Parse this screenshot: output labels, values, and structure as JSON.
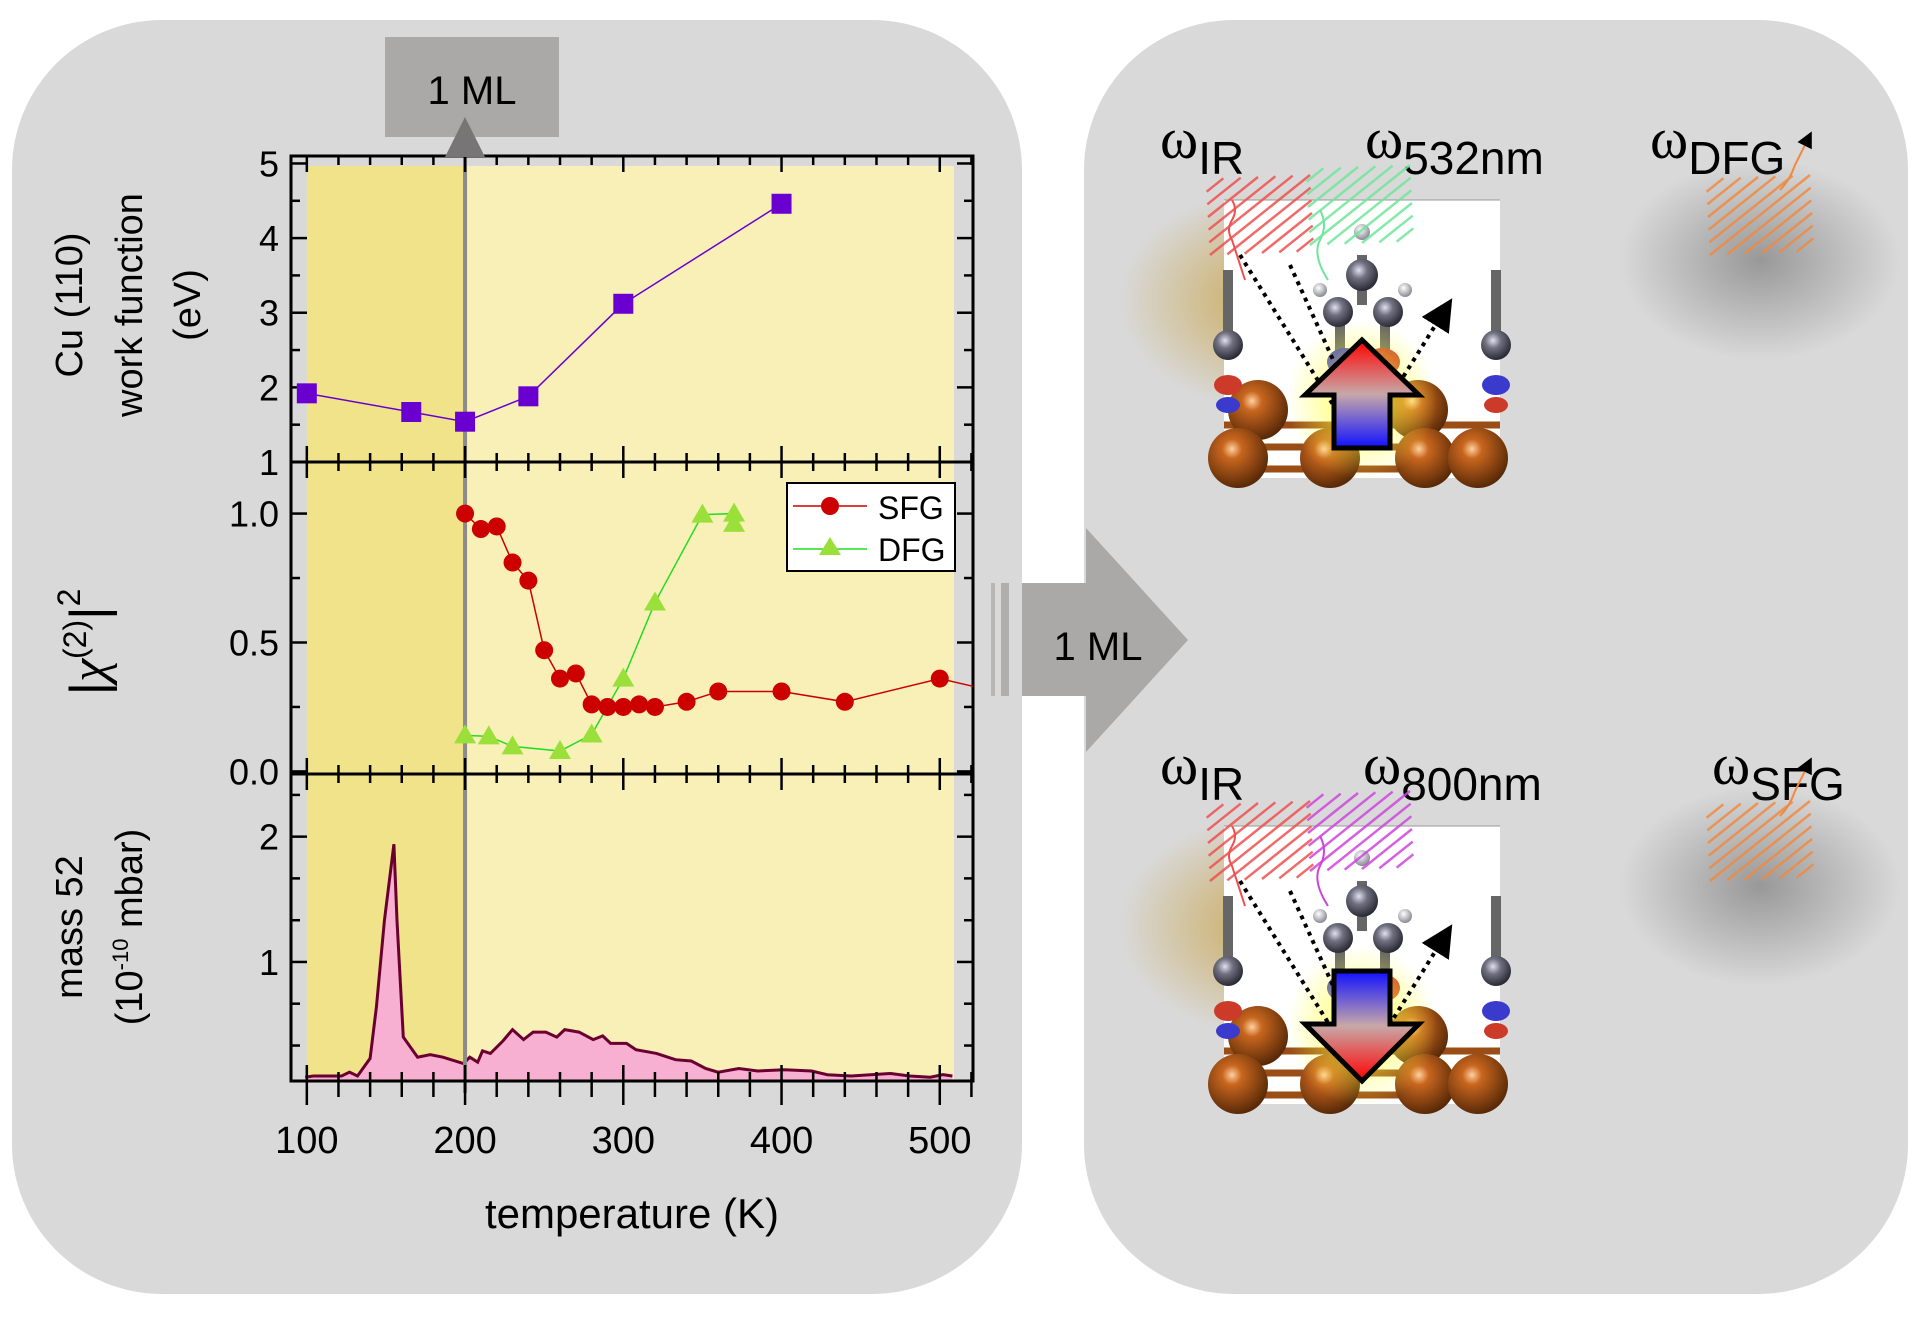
{
  "figure": {
    "top_marker_label": "1 ML",
    "center_arrow_label": "1 ML",
    "colors": {
      "panel_bg": "#d9d9d9",
      "plot_bg_light": "#f9f0b8",
      "plot_bg_dark": "#f0e38a",
      "work_function": "#6a00d0",
      "sfg": "#cc0000",
      "dfg_marker": "#9be03a",
      "dfg_line": "#22dd22",
      "mass_fill": "#f7b0d2",
      "mass_line": "#6a0030",
      "marker_gray": "#8c8a8a",
      "box_gray": "#aba8a8"
    }
  },
  "chart_data": [
    {
      "type": "scatter",
      "panel": "top",
      "ylabel_lines": [
        "Cu (110)",
        "work function",
        "(eV)"
      ],
      "ylim": [
        1,
        5.1
      ],
      "yticks": [
        "1",
        "2",
        "3",
        "4",
        "5"
      ],
      "xlim": [
        90,
        521
      ],
      "series": [
        {
          "name": "work function",
          "marker": "square",
          "x": [
            100,
            166,
            200,
            240,
            300,
            400
          ],
          "y": [
            1.92,
            1.67,
            1.54,
            1.88,
            3.12,
            4.46
          ]
        }
      ]
    },
    {
      "type": "scatter",
      "panel": "middle",
      "ylabel": "|χ(2)|2",
      "ylim": [
        -0.01,
        1.2
      ],
      "yticks": [
        "0.0",
        "0.5",
        "1.0"
      ],
      "xlim": [
        90,
        521
      ],
      "legend": {
        "position": "top-right",
        "entries": [
          "SFG",
          "DFG"
        ]
      },
      "series": [
        {
          "name": "SFG",
          "marker": "circle",
          "x": [
            200,
            210,
            220,
            230,
            240,
            250,
            260,
            270,
            280,
            290,
            300,
            310,
            320,
            340,
            360,
            400,
            440,
            500
          ],
          "y": [
            1.0,
            0.94,
            0.95,
            0.81,
            0.74,
            0.47,
            0.36,
            0.38,
            0.26,
            0.25,
            0.25,
            0.26,
            0.25,
            0.27,
            0.31,
            0.31,
            0.27,
            0.36
          ]
        },
        {
          "name": "DFG",
          "marker": "triangle",
          "x": [
            200,
            215,
            230,
            260,
            280,
            300,
            320,
            350,
            370,
            370
          ],
          "y": [
            0.14,
            0.136,
            0.097,
            0.079,
            0.143,
            0.36,
            0.655,
            0.996,
            1.0,
            0.96
          ]
        }
      ]
    },
    {
      "type": "area",
      "panel": "bottom",
      "ylabel_lines": [
        "mass 52",
        "(10-10 mbar)"
      ],
      "ylabel_sup": "-10",
      "ylim": [
        0.05,
        2.5
      ],
      "yticks": [
        "1",
        "2"
      ],
      "xlim": [
        90,
        521
      ],
      "xlabel": "temperature (K)",
      "xticks": [
        "100",
        "200",
        "300",
        "400",
        "500"
      ],
      "series": [
        {
          "name": "mass 52",
          "x": [
            99,
            104,
            122,
            127,
            132,
            140,
            144,
            149,
            155,
            157,
            161,
            170,
            178,
            186,
            199,
            203,
            208,
            211,
            216,
            224,
            230,
            237,
            243,
            251,
            258,
            263,
            272,
            281,
            287,
            292,
            302,
            308,
            321,
            333,
            343,
            352,
            360,
            373,
            385,
            402,
            419,
            429,
            444,
            469,
            481,
            494,
            502,
            508
          ],
          "y": [
            0.08,
            0.09,
            0.09,
            0.12,
            0.09,
            0.23,
            0.64,
            1.33,
            1.94,
            1.33,
            0.4,
            0.24,
            0.26,
            0.24,
            0.19,
            0.24,
            0.2,
            0.29,
            0.27,
            0.37,
            0.46,
            0.38,
            0.44,
            0.44,
            0.4,
            0.46,
            0.44,
            0.38,
            0.41,
            0.35,
            0.35,
            0.3,
            0.27,
            0.22,
            0.21,
            0.15,
            0.12,
            0.15,
            0.13,
            0.14,
            0.13,
            0.1,
            0.09,
            0.11,
            0.09,
            0.08,
            0.1,
            0.09
          ]
        }
      ]
    }
  ],
  "shading": {
    "dark_region_k": [
      100,
      200
    ],
    "light_region_k": [
      200,
      509
    ],
    "marker_line_k": 200
  },
  "schematics": [
    {
      "id": "dfg",
      "labels": [
        {
          "sym": "ω",
          "sub": "IR"
        },
        {
          "sym": "ω",
          "sub": "532nm"
        },
        {
          "sym": "ω",
          "sub": "DFG"
        }
      ],
      "beam_color": "#6ee59a",
      "dipole": "up"
    },
    {
      "id": "sfg",
      "labels": [
        {
          "sym": "ω",
          "sub": "IR"
        },
        {
          "sym": "ω",
          "sub": "800nm"
        },
        {
          "sym": "ω",
          "sub": "SFG"
        }
      ],
      "beam_color": "#cc44dd",
      "dipole": "down"
    }
  ]
}
